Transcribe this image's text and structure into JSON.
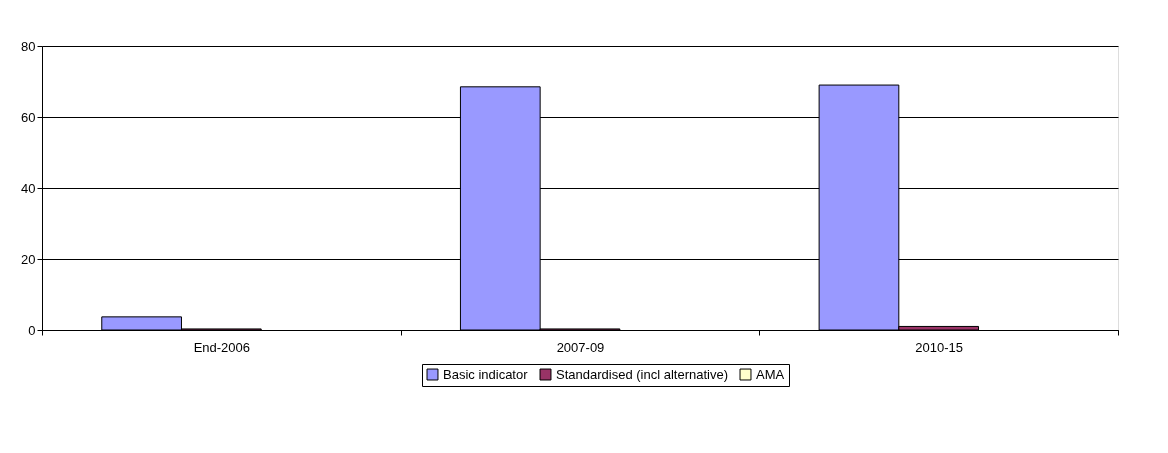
{
  "chart_data": {
    "type": "bar",
    "categories": [
      "End-2006",
      "2007-09",
      "2010-15"
    ],
    "series": [
      {
        "name": "Basic indicator",
        "color": "#9999ff",
        "values": [
          3.7,
          68.5,
          69
        ]
      },
      {
        "name": "Standardised (incl alternative)",
        "color": "#993366",
        "values": [
          0.3,
          0.3,
          1.0
        ]
      },
      {
        "name": "AMA",
        "color": "#ffffcc",
        "values": [
          null,
          null,
          null
        ]
      }
    ],
    "ylim": [
      0,
      80
    ],
    "yticks": [
      0,
      20,
      40,
      60,
      80
    ],
    "grid": "y",
    "legend": "bottom"
  }
}
